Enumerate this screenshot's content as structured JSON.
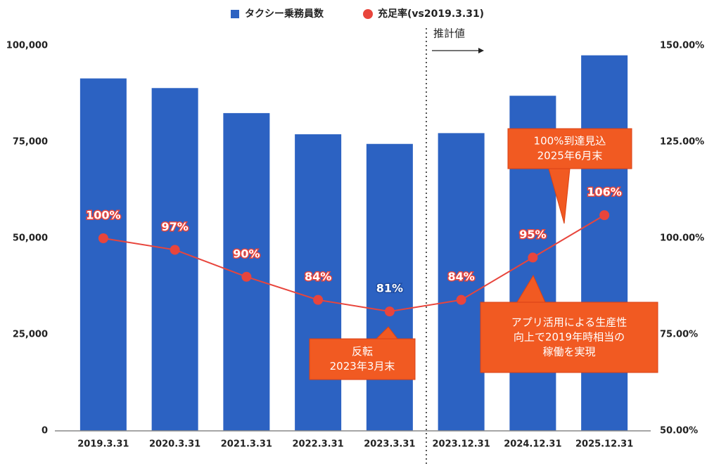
{
  "chart_data": {
    "type": "bar_line",
    "categories": [
      "2019.3.31",
      "2020.3.31",
      "2021.3.31",
      "2022.3.31",
      "2023.3.31",
      "2023.12.31",
      "2024.12.31",
      "2025.12.31"
    ],
    "series": [
      {
        "name": "タクシー乗務員数",
        "type": "bar",
        "color": "#2c62c2",
        "values": [
          91500,
          89000,
          82500,
          77000,
          74500,
          77300,
          87000,
          97500
        ]
      },
      {
        "name": "充足率(vs2019.3.31)",
        "type": "line",
        "axis": "y2",
        "color": "#e8453c",
        "values": [
          100,
          97,
          90,
          84,
          81,
          84,
          95,
          106
        ],
        "value_labels": [
          "100%",
          "97%",
          "90%",
          "84%",
          "81%",
          "84%",
          "95%",
          "106%"
        ]
      }
    ],
    "ylim": [
      0,
      100000
    ],
    "yticks": [
      0,
      {
        "value": 25000,
        "label": "25,000"
      },
      {
        "value": 50000,
        "label": "50,000"
      },
      {
        "value": 75000,
        "label": "75,000"
      },
      {
        "value": 100000,
        "label": "100,000"
      }
    ],
    "y2lim": [
      50,
      150
    ],
    "y2ticks": [
      {
        "value": 50,
        "label": "50.00%"
      },
      {
        "value": 75,
        "label": "75.00%"
      },
      {
        "value": 100,
        "label": "100.00%"
      },
      {
        "value": 125,
        "label": "125.00%"
      },
      {
        "value": 150,
        "label": "150.00%"
      }
    ],
    "legend": "top",
    "forecast_label": "推計値",
    "annotations": [
      {
        "lines": [
          "反転",
          "2023年3月末"
        ]
      },
      {
        "lines": [
          "100%到達見込",
          "2025年6月末"
        ]
      },
      {
        "lines": [
          "アプリ活用による生産性",
          "向上で2019年時相当の",
          "稼働を実現"
        ]
      }
    ]
  }
}
